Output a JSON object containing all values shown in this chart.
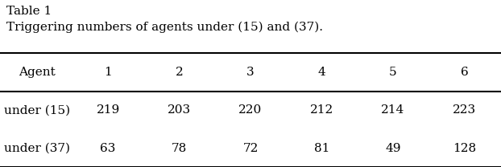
{
  "table_label": "Table 1",
  "caption": "Triggering numbers of agents under (15) and (37).",
  "col_headers": [
    "Agent",
    "1",
    "2",
    "3",
    "4",
    "5",
    "6"
  ],
  "rows": [
    [
      "under (15)",
      "219",
      "203",
      "220",
      "212",
      "214",
      "223"
    ],
    [
      "under (37)",
      "63",
      "78",
      "72",
      "81",
      "49",
      "128"
    ]
  ],
  "background_color": "#ffffff",
  "text_color": "#000000",
  "font_size": 11,
  "label_fontsize": 11,
  "caption_fontsize": 11
}
